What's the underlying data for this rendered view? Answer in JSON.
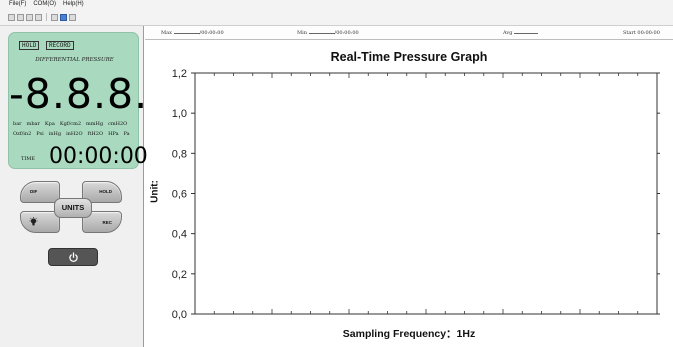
{
  "menubar": {
    "items": [
      "File(F)",
      "COM(O)",
      "Help(H)"
    ]
  },
  "toolbar": {
    "icons": [
      "save-icon",
      "copy-icon",
      "grid-icon",
      "print-icon",
      "settings-icon",
      "blue-document-icon",
      "close-icon"
    ]
  },
  "meter": {
    "hold_label": "HOLD",
    "record_label": "RECORD",
    "title": "DIFFERENTIAL PRESSURE",
    "value": "-8.8.8.",
    "units_row1": [
      "bar",
      "mbar",
      "Kpa",
      "Kgf/cm2",
      "mmHg",
      "cmH2O"
    ],
    "units_row2": [
      "Ozf/in2",
      "Psi",
      "inHg",
      "inH2O",
      "ftH2O",
      "HPa",
      "Pa"
    ],
    "time_label": "TIME",
    "time_value": "00:00:00",
    "background": "#a9d9be"
  },
  "controls": {
    "dif_label": "DIF",
    "hold_label": "HOLD",
    "units_label": "UNITS",
    "rec_label": "REC",
    "light_icon": "lightbulb-icon",
    "power_icon": "power-icon"
  },
  "status": {
    "max_label": "Max",
    "max_value": "/00:00:00",
    "min_label": "Min",
    "min_value": "/00:00:00",
    "avg_label": "Avg",
    "start_label": "Start",
    "start_value": "00:00:00"
  },
  "chart_data": {
    "type": "line",
    "title": "Real-Time Pressure Graph",
    "xlabel": "Sampling  Frequency：1Hz",
    "ylabel": "Unit:",
    "ylim": [
      0,
      1.2
    ],
    "y_ticks": [
      "0,0",
      "0,2",
      "0,4",
      "0,6",
      "0,8",
      "1,0",
      "1,2"
    ],
    "series": [],
    "grid": false
  }
}
